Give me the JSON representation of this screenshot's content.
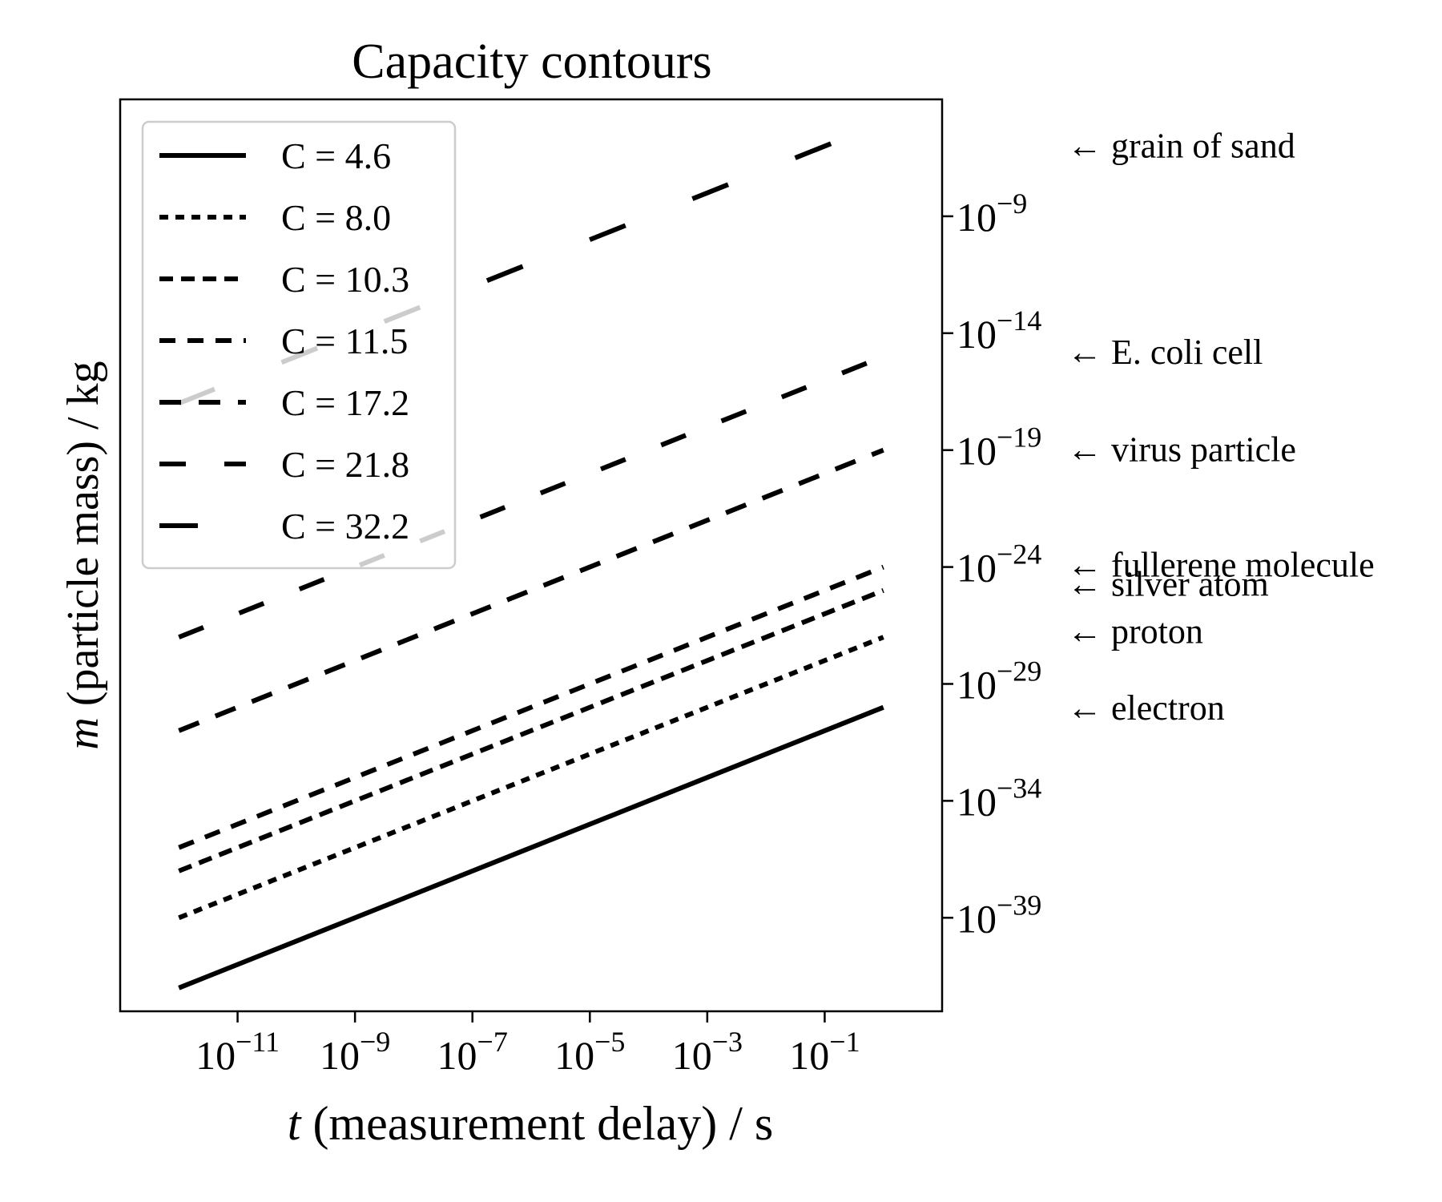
{
  "chart_data": {
    "type": "line",
    "title": "Capacity contours",
    "xlabel": {
      "var": "t",
      "rest": " (measurement delay) / s"
    },
    "ylabel": {
      "var": "m",
      "rest": " (particle mass) / kg"
    },
    "x_scale": "log",
    "y_scale": "log",
    "xlim": [
      1e-13,
      10
    ],
    "ylim": [
      1e-43,
      0.0001
    ],
    "x_ticks": [
      {
        "value": 1e-11,
        "base": "10",
        "exp": "−11"
      },
      {
        "value": 1e-09,
        "base": "10",
        "exp": "−9"
      },
      {
        "value": 1e-07,
        "base": "10",
        "exp": "−7"
      },
      {
        "value": 1e-05,
        "base": "10",
        "exp": "−5"
      },
      {
        "value": 0.001,
        "base": "10",
        "exp": "−3"
      },
      {
        "value": 0.1,
        "base": "10",
        "exp": "−1"
      }
    ],
    "y_ticks": [
      {
        "value": 1e-09,
        "base": "10",
        "exp": "−9"
      },
      {
        "value": 1e-14,
        "base": "10",
        "exp": "−14"
      },
      {
        "value": 1e-19,
        "base": "10",
        "exp": "−19"
      },
      {
        "value": 1e-24,
        "base": "10",
        "exp": "−24"
      },
      {
        "value": 1e-29,
        "base": "10",
        "exp": "−29"
      },
      {
        "value": 1e-34,
        "base": "10",
        "exp": "−34"
      },
      {
        "value": 1e-39,
        "base": "10",
        "exp": "−39"
      }
    ],
    "y_axis_side": "right",
    "grid": false,
    "legend_position": "top-left",
    "series": [
      {
        "name": "C = 4.6",
        "x": [
          1e-12,
          1
        ],
        "y": [
          1e-42,
          1e-30
        ],
        "dash": "solid"
      },
      {
        "name": "C = 8.0",
        "x": [
          1e-12,
          1
        ],
        "y": [
          1e-39,
          1e-27
        ],
        "dash": "dotted"
      },
      {
        "name": "C = 10.3",
        "x": [
          1e-12,
          1
        ],
        "y": [
          1e-37,
          1e-25
        ],
        "dash": "short"
      },
      {
        "name": "C = 11.5",
        "x": [
          1e-12,
          1
        ],
        "y": [
          1e-36,
          1e-24
        ],
        "dash": "short-wide"
      },
      {
        "name": "C = 17.2",
        "x": [
          1e-12,
          1
        ],
        "y": [
          1e-31,
          1e-19
        ],
        "dash": "medium"
      },
      {
        "name": "C = 21.8",
        "x": [
          1e-12,
          1
        ],
        "y": [
          1e-27,
          1e-15
        ],
        "dash": "long-gap"
      },
      {
        "name": "C = 32.2",
        "x": [
          1e-12,
          1
        ],
        "y": [
          1e-17,
          1e-05
        ],
        "dash": "long"
      }
    ],
    "annotations": [
      {
        "label": "← grain of sand",
        "y": 1e-06
      },
      {
        "label": "← E. coli cell",
        "y": 1.5e-15
      },
      {
        "label": "← virus particle",
        "y": 1e-19
      },
      {
        "label": "← fullerene molecule",
        "y": 1.2e-24
      },
      {
        "label": "← silver atom",
        "y": 1.8e-25
      },
      {
        "label": "← proton",
        "y": 1.7e-27
      },
      {
        "label": "← electron",
        "y": 9.1e-31
      }
    ]
  }
}
